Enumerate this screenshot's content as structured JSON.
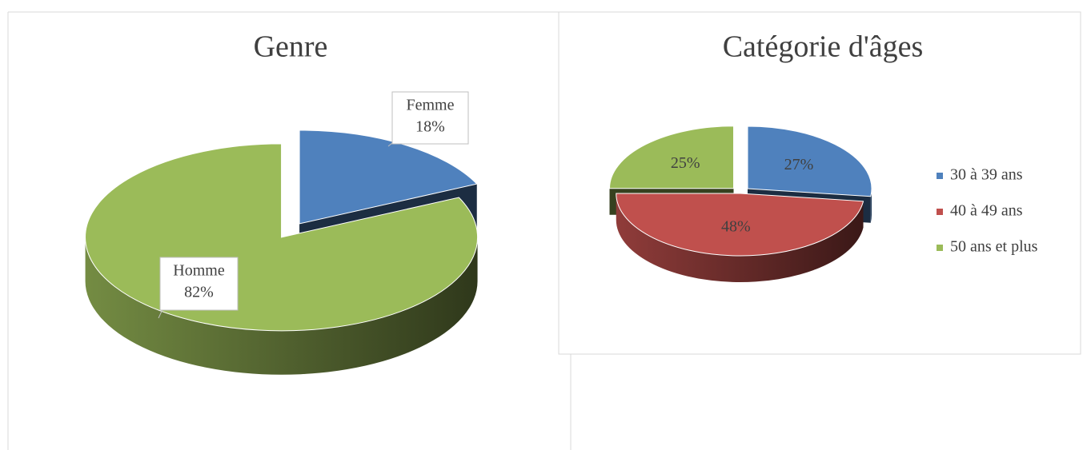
{
  "chart_data": [
    {
      "type": "pie",
      "title": "Genre",
      "categories": [
        "Femme",
        "Homme"
      ],
      "values": [
        18,
        82
      ],
      "value_labels": [
        "18%",
        "82%"
      ],
      "colors": [
        "#4f81bd",
        "#9bbb59"
      ],
      "label_style": "callout",
      "legend": false
    },
    {
      "type": "pie",
      "title": "Catégorie d'âges",
      "categories": [
        "30 à 39 ans",
        "40 à 49 ans",
        "50 ans et plus"
      ],
      "values": [
        27,
        48,
        25
      ],
      "value_labels": [
        "27%",
        "48%",
        "25%"
      ],
      "colors": [
        "#4f81bd",
        "#c0504d",
        "#9bbb59"
      ],
      "label_style": "inside",
      "legend": "right"
    }
  ]
}
